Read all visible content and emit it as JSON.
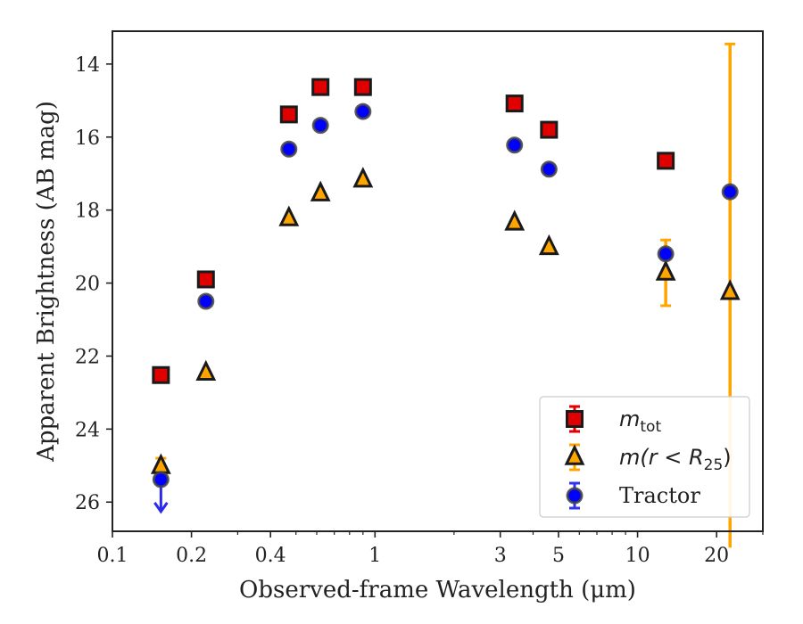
{
  "chart_data": {
    "type": "scatter",
    "title": "",
    "xlabel": "Observed-frame Wavelength (μm)",
    "ylabel": "Apparent Brightness (AB mag)",
    "xscale": "log",
    "xlim": [
      0.1,
      30
    ],
    "ylim": [
      26.8,
      13.1
    ],
    "y_inverted": true,
    "xticks": [
      {
        "value": 0.1,
        "label": "0.1"
      },
      {
        "value": 0.2,
        "label": "0.2"
      },
      {
        "value": 0.4,
        "label": "0.4"
      },
      {
        "value": 1,
        "label": "1"
      },
      {
        "value": 3,
        "label": "3"
      },
      {
        "value": 5,
        "label": "5"
      },
      {
        "value": 10,
        "label": "10"
      },
      {
        "value": 20,
        "label": "20"
      }
    ],
    "yticks": [
      {
        "value": 14,
        "label": "14"
      },
      {
        "value": 16,
        "label": "16"
      },
      {
        "value": 18,
        "label": "18"
      },
      {
        "value": 20,
        "label": "20"
      },
      {
        "value": 22,
        "label": "22"
      },
      {
        "value": 24,
        "label": "24"
      },
      {
        "value": 26,
        "label": "26"
      }
    ],
    "grid": false,
    "legend_position": "lower-right",
    "series": [
      {
        "name": "m_tot",
        "marker": "square",
        "color": "#e00000",
        "errcolor": "#e00000",
        "points": [
          {
            "x": 0.153,
            "y": 22.52
          },
          {
            "x": 0.227,
            "y": 19.9
          },
          {
            "x": 0.47,
            "y": 15.38
          },
          {
            "x": 0.62,
            "y": 14.63
          },
          {
            "x": 0.9,
            "y": 14.63
          },
          {
            "x": 3.4,
            "y": 15.08
          },
          {
            "x": 4.6,
            "y": 15.8
          },
          {
            "x": 12.8,
            "y": 16.65
          }
        ]
      },
      {
        "name": "m(r < R_25)",
        "marker": "triangle",
        "color": "#ffa500",
        "errcolor": "#ffa500",
        "points": [
          {
            "x": 0.153,
            "y": 25.02,
            "err": 0.22
          },
          {
            "x": 0.227,
            "y": 22.46
          },
          {
            "x": 0.47,
            "y": 18.23
          },
          {
            "x": 0.62,
            "y": 17.55
          },
          {
            "x": 0.9,
            "y": 17.17
          },
          {
            "x": 3.4,
            "y": 18.35
          },
          {
            "x": 4.6,
            "y": 19.02
          },
          {
            "x": 12.8,
            "y": 19.72,
            "err": 0.9
          },
          {
            "x": 22.5,
            "y": 20.25,
            "err_up": 6.8,
            "err_down": 7.0
          }
        ]
      },
      {
        "name": "Tractor",
        "marker": "circle",
        "color": "#0000ff",
        "errcolor": "#3333ee",
        "points": [
          {
            "x": 0.153,
            "y": 25.38,
            "upper_limit": true
          },
          {
            "x": 0.227,
            "y": 20.5
          },
          {
            "x": 0.47,
            "y": 16.33
          },
          {
            "x": 0.62,
            "y": 15.68
          },
          {
            "x": 0.9,
            "y": 15.3
          },
          {
            "x": 3.4,
            "y": 16.22
          },
          {
            "x": 4.6,
            "y": 16.88
          },
          {
            "x": 12.8,
            "y": 19.2
          },
          {
            "x": 22.5,
            "y": 17.5
          }
        ]
      }
    ],
    "legend": [
      {
        "label": "m",
        "sub": "tot",
        "math": true
      },
      {
        "label": "m(r < R",
        "sub": "25",
        "suffix": ")",
        "math": true
      },
      {
        "label": "Tractor",
        "math": false
      }
    ]
  }
}
